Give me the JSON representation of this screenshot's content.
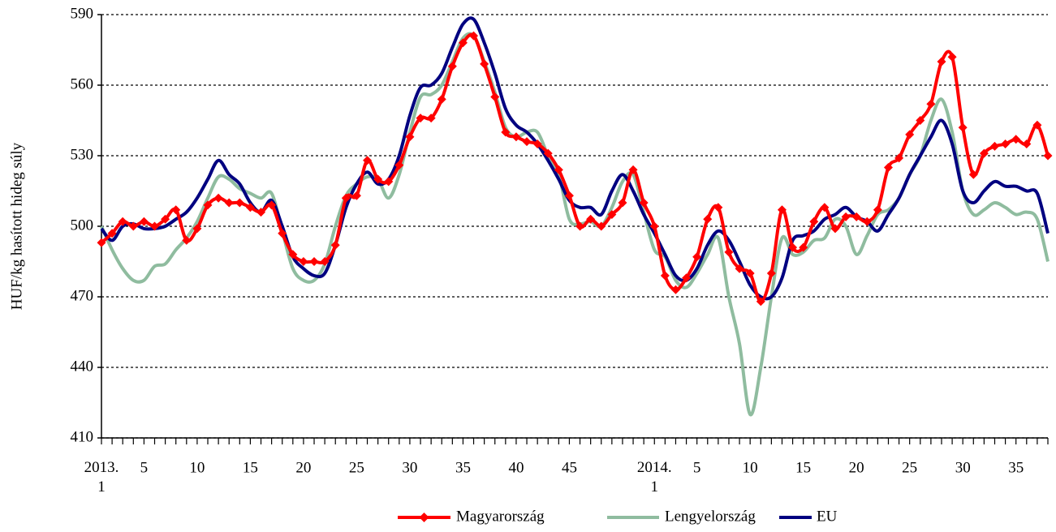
{
  "chart_data": {
    "type": "line",
    "y_label": "HUF/kg hasított hideg súly",
    "categories": [
      "2013.\n1",
      null,
      null,
      null,
      "5",
      null,
      null,
      null,
      null,
      "10",
      null,
      null,
      null,
      null,
      "15",
      null,
      null,
      null,
      null,
      "20",
      null,
      null,
      null,
      null,
      "25",
      null,
      null,
      null,
      null,
      "30",
      null,
      null,
      null,
      null,
      "35",
      null,
      null,
      null,
      null,
      "40",
      null,
      null,
      null,
      null,
      "45",
      null,
      null,
      null,
      null,
      null,
      null,
      null,
      "2014.\n1",
      null,
      null,
      null,
      "5",
      null,
      null,
      null,
      null,
      "10",
      null,
      null,
      null,
      null,
      "15",
      null,
      null,
      null,
      null,
      "20",
      null,
      null,
      null,
      null,
      "25",
      null,
      null,
      null,
      null,
      "30",
      null,
      null,
      null,
      null,
      "35",
      null,
      null,
      null
    ],
    "series": [
      {
        "name": "Magyarország",
        "color": "#ff0000",
        "marker": "diamond",
        "values": [
          493,
          497,
          502,
          500,
          502,
          500,
          503,
          507,
          494,
          499,
          509,
          512,
          510,
          510,
          508,
          506,
          509,
          497,
          488,
          485,
          485,
          485,
          492,
          512,
          513,
          528,
          520,
          519,
          526,
          538,
          546,
          546,
          554,
          568,
          578,
          581,
          569,
          555,
          540,
          538,
          536,
          535,
          531,
          524,
          513,
          500,
          503,
          500,
          505,
          510,
          524,
          510,
          500,
          479,
          473,
          478,
          487,
          503,
          508,
          489,
          482,
          480,
          468,
          480,
          507,
          491,
          491,
          502,
          508,
          499,
          504,
          504,
          502,
          507,
          525,
          529,
          539,
          545,
          552,
          570,
          572,
          542,
          522,
          531,
          534,
          535,
          537,
          535,
          543,
          530
        ]
      },
      {
        "name": "Lengyelország",
        "color": "#8fbc9f",
        "values": [
          500,
          490,
          482,
          477,
          477,
          483,
          484,
          490,
          495,
          502,
          512,
          521,
          520,
          516,
          514,
          512,
          514,
          498,
          482,
          477,
          477,
          484,
          500,
          513,
          518,
          521,
          520,
          512,
          522,
          540,
          555,
          556,
          560,
          570,
          580,
          581,
          570,
          557,
          542,
          538,
          540,
          540,
          530,
          522,
          503,
          501,
          502,
          500,
          508,
          519,
          522,
          506,
          490,
          487,
          477,
          474,
          480,
          488,
          495,
          470,
          450,
          420,
          440,
          470,
          495,
          488,
          489,
          494,
          495,
          503,
          500,
          488,
          496,
          505,
          507,
          512,
          522,
          530,
          545,
          554,
          540,
          515,
          505,
          507,
          510,
          508,
          505,
          506,
          503,
          485
        ]
      },
      {
        "name": "EU",
        "color": "#000080",
        "values": [
          499,
          494,
          500,
          501,
          499,
          499,
          500,
          503,
          506,
          512,
          520,
          528,
          522,
          518,
          510,
          506,
          511,
          500,
          487,
          482,
          479,
          480,
          492,
          508,
          518,
          523,
          518,
          520,
          530,
          547,
          559,
          560,
          565,
          576,
          586,
          588,
          578,
          565,
          550,
          543,
          540,
          535,
          528,
          520,
          511,
          508,
          508,
          505,
          515,
          522,
          515,
          505,
          497,
          488,
          479,
          477,
          482,
          492,
          498,
          494,
          485,
          475,
          470,
          470,
          478,
          494,
          496,
          498,
          503,
          505,
          508,
          504,
          502,
          498,
          505,
          512,
          522,
          530,
          538,
          545,
          535,
          515,
          510,
          515,
          519,
          517,
          517,
          515,
          514,
          497
        ]
      }
    ],
    "ylim": [
      410,
      590
    ],
    "yticks": [
      410,
      440,
      470,
      500,
      530,
      560,
      590
    ],
    "grid": true,
    "legend": "bottom"
  }
}
